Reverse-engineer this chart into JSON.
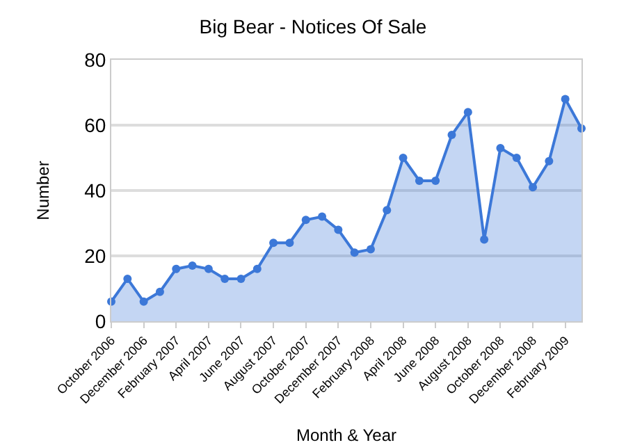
{
  "chart_data": {
    "type": "area",
    "title": "Big Bear - Notices Of Sale",
    "xlabel": "Month & Year",
    "ylabel": "Number",
    "categories": [
      "October 2006",
      null,
      "December 2006",
      null,
      "February 2007",
      null,
      "April 2007",
      null,
      "June 2007",
      null,
      "August 2007",
      null,
      "October 2007",
      null,
      "December 2007",
      null,
      "February 2008",
      null,
      "April 2008",
      null,
      "June 2008",
      null,
      "August 2008",
      null,
      "October 2008",
      null,
      "December 2008",
      null,
      "February 2009",
      null
    ],
    "series": [
      {
        "color": "#3c78d8",
        "values": [
          6,
          13,
          6,
          9,
          16,
          17,
          16,
          13,
          13,
          16,
          24,
          24,
          31,
          32,
          28,
          21,
          22,
          34,
          50,
          43,
          43,
          57,
          64,
          25,
          53,
          50,
          41,
          49,
          68,
          59
        ]
      }
    ],
    "ylim": [
      0,
      80
    ],
    "yticks": [
      0,
      20,
      40,
      60,
      80
    ],
    "grid": "y",
    "marker": "circle"
  }
}
